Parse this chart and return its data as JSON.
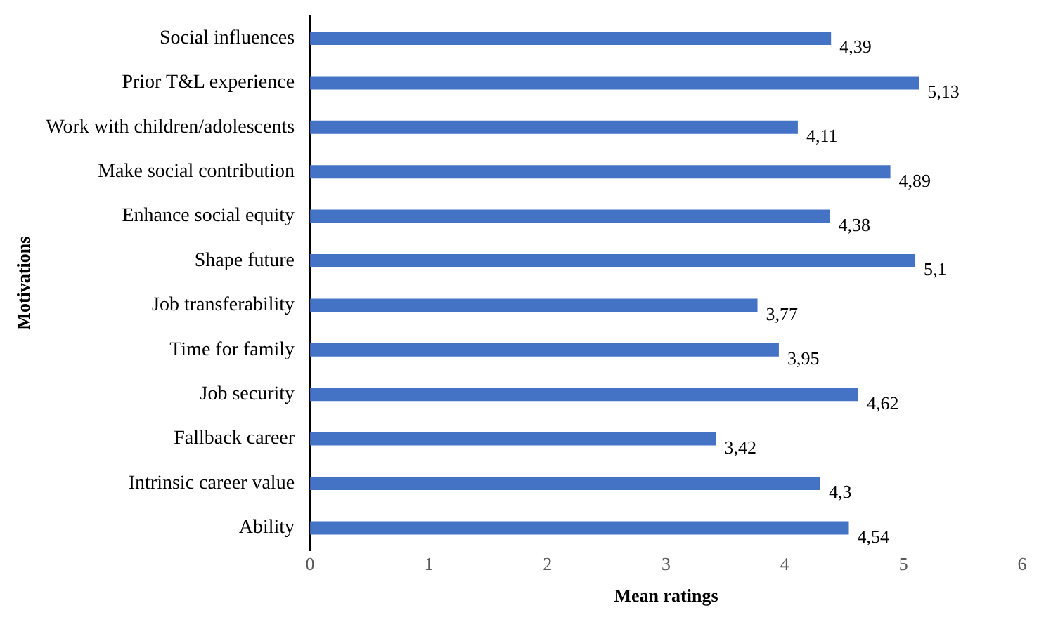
{
  "chart_data": {
    "type": "bar",
    "orientation": "horizontal",
    "xlabel": "Mean ratings",
    "ylabel": "Motivations",
    "categories": [
      "Social influences",
      "Prior T&L experience",
      "Work with children/adolescents",
      "Make social contribution",
      "Enhance social equity",
      "Shape future",
      "Job transferability",
      "Time for family",
      "Job security",
      "Fallback career",
      "Intrinsic career value",
      "Ability"
    ],
    "values": [
      4.39,
      5.13,
      4.11,
      4.89,
      4.38,
      5.1,
      3.77,
      3.95,
      4.62,
      3.42,
      4.3,
      4.54
    ],
    "value_labels": [
      "4,39",
      "5,13",
      "4,11",
      "4,89",
      "4,38",
      "5,1",
      "3,77",
      "3,95",
      "4,62",
      "3,42",
      "4,3",
      "4,54"
    ],
    "color": "#4472c4",
    "xlim": [
      0,
      6
    ],
    "xticks": [
      0,
      1,
      2,
      3,
      4,
      5,
      6
    ],
    "grid": false,
    "legend": false
  }
}
